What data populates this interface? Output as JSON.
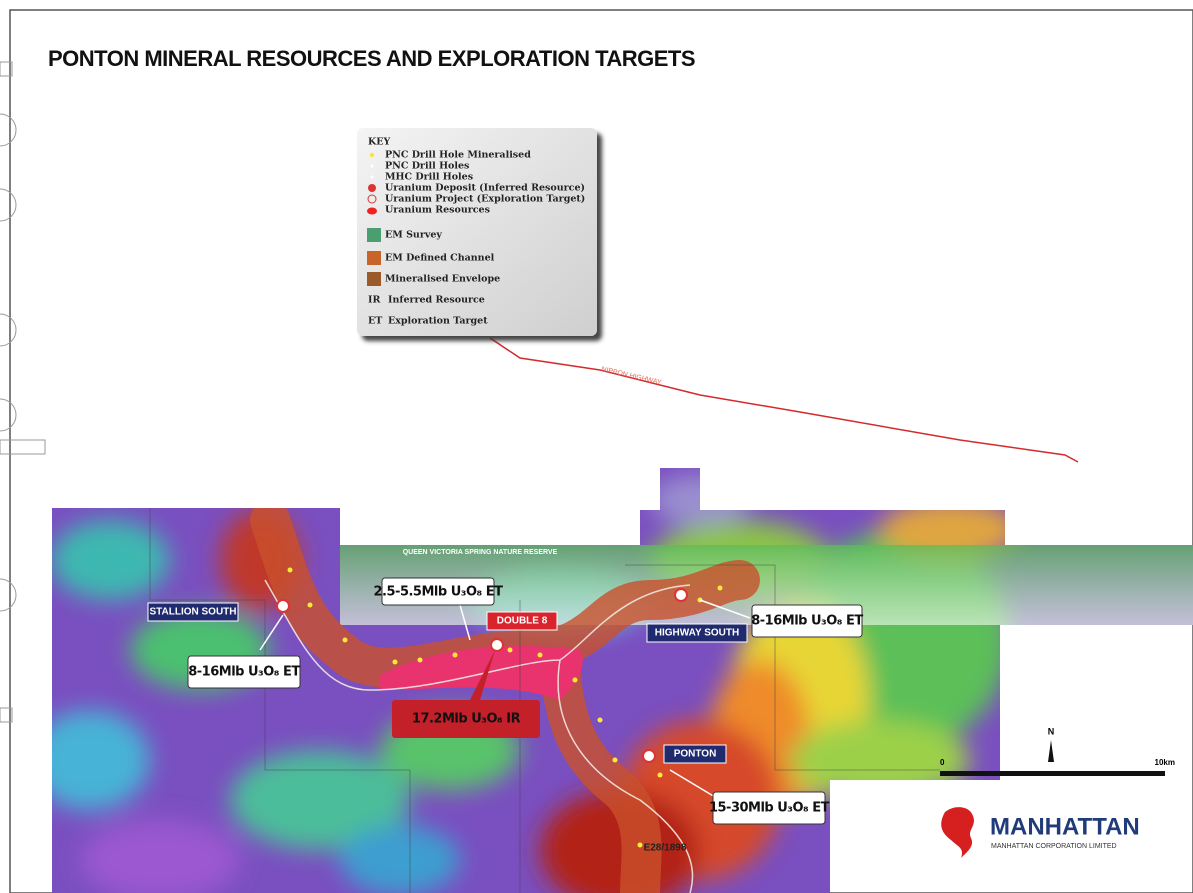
{
  "title": "PONTON MINERAL RESOURCES AND EXPLORATION TARGETS",
  "key": {
    "heading": "KEY",
    "items": [
      "PNC Drill Hole Mineralised",
      "PNC Drill Holes",
      "MHC Drill Holes",
      "Uranium Deposit (Inferred Resource)",
      "Uranium Project (Exploration Target)",
      "Uranium Resources",
      "EM Survey",
      "EM Defined Channel",
      "Mineralised Envelope"
    ],
    "abbreviations": [
      {
        "code": "IR",
        "text": "Inferred Resource"
      },
      {
        "code": "ET",
        "text": "Exploration Target"
      }
    ]
  },
  "map": {
    "highway": "NIPPON HIGHWAY",
    "reserve": "QUEEN VICTORIA SPRING NATURE RESERVE",
    "places": [
      "STALLION SOUTH",
      "DOUBLE 8",
      "HIGHWAY SOUTH",
      "PONTON"
    ],
    "tenement": "E28/1898",
    "callouts": [
      "2.5-5.5Mlb U₃O₈ ET",
      "8-16Mlb U₃O₈ ET",
      "8-16Mlb U₃O₈ ET",
      "17.2Mlb U₃O₈ IR",
      "15-30Mlb U₃O₈ ET"
    ],
    "north": "N",
    "scale_start": "0",
    "scale_end": "10km"
  },
  "logo": {
    "name": "MANHATTAN",
    "subtitle": "MANHATTAN CORPORATION LIMITED"
  }
}
